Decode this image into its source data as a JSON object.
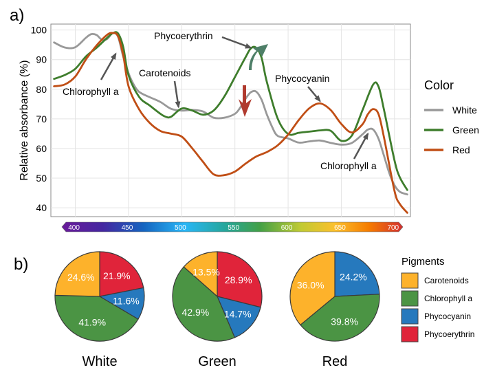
{
  "panel_a_label": "a)",
  "panel_b_label": "b)",
  "spectrum_ticks": [
    "400",
    "450",
    "500",
    "550",
    "600",
    "650",
    "700"
  ],
  "chart_data": [
    {
      "type": "line",
      "ylabel": "Relative absorbance (%)",
      "xlim": [
        377,
        715
      ],
      "ylim": [
        37,
        102
      ],
      "y_ticks": [
        40,
        50,
        60,
        70,
        80,
        90,
        100
      ],
      "grid": true,
      "legend": {
        "title": "Color",
        "placement": "right"
      },
      "series": [
        {
          "name": "White",
          "color": "#999999",
          "points": [
            [
              380,
              95.8
            ],
            [
              390,
              94.1
            ],
            [
              400,
              94.2
            ],
            [
              410,
              97.4
            ],
            [
              415,
              98.6
            ],
            [
              420,
              98.3
            ],
            [
              425,
              96.7
            ],
            [
              430,
              97.0
            ],
            [
              435,
              98.9
            ],
            [
              440,
              97.8
            ],
            [
              445,
              91.0
            ],
            [
              450,
              85.4
            ],
            [
              455,
              81.5
            ],
            [
              460,
              79.1
            ],
            [
              470,
              77.3
            ],
            [
              480,
              75.7
            ],
            [
              490,
              73.4
            ],
            [
              500,
              72.8
            ],
            [
              510,
              73.0
            ],
            [
              520,
              72.5
            ],
            [
              530,
              70.4
            ],
            [
              540,
              70.4
            ],
            [
              550,
              71.7
            ],
            [
              555,
              73.8
            ],
            [
              560,
              76.8
            ],
            [
              565,
              79.0
            ],
            [
              570,
              79.2
            ],
            [
              575,
              76.5
            ],
            [
              580,
              71.5
            ],
            [
              585,
              67.3
            ],
            [
              590,
              64.3
            ],
            [
              600,
              63.4
            ],
            [
              610,
              62.0
            ],
            [
              620,
              62.4
            ],
            [
              630,
              62.7
            ],
            [
              640,
              61.9
            ],
            [
              650,
              61.3
            ],
            [
              660,
              61.9
            ],
            [
              670,
              64.8
            ],
            [
              675,
              66.4
            ],
            [
              680,
              66.4
            ],
            [
              685,
              63.3
            ],
            [
              690,
              57.7
            ],
            [
              695,
              51.8
            ],
            [
              700,
              47.6
            ],
            [
              705,
              45.4
            ],
            [
              712,
              44.5
            ]
          ]
        },
        {
          "name": "Green",
          "color": "#3e7d2c",
          "points": [
            [
              380,
              83.5
            ],
            [
              390,
              84.8
            ],
            [
              400,
              86.9
            ],
            [
              410,
              91.1
            ],
            [
              420,
              94.0
            ],
            [
              430,
              97.4
            ],
            [
              435,
              98.9
            ],
            [
              440,
              98.9
            ],
            [
              445,
              94.3
            ],
            [
              450,
              84.7
            ],
            [
              460,
              77.4
            ],
            [
              470,
              74.5
            ],
            [
              480,
              71.7
            ],
            [
              485,
              70.7
            ],
            [
              490,
              70.7
            ],
            [
              500,
              73.5
            ],
            [
              510,
              72.8
            ],
            [
              520,
              71.4
            ],
            [
              530,
              72.8
            ],
            [
              540,
              77.5
            ],
            [
              550,
              84.1
            ],
            [
              560,
              90.8
            ],
            [
              565,
              93.8
            ],
            [
              570,
              94.0
            ],
            [
              575,
              90.7
            ],
            [
              580,
              82.5
            ],
            [
              590,
              70.3
            ],
            [
              600,
              64.9
            ],
            [
              610,
              65.3
            ],
            [
              620,
              65.7
            ],
            [
              630,
              66.1
            ],
            [
              640,
              66.0
            ],
            [
              650,
              62.6
            ],
            [
              660,
              64.4
            ],
            [
              670,
              73.0
            ],
            [
              680,
              81.6
            ],
            [
              685,
              80.9
            ],
            [
              690,
              73.3
            ],
            [
              700,
              56.0
            ],
            [
              705,
              50.3
            ],
            [
              712,
              46.0
            ]
          ]
        },
        {
          "name": "Red",
          "color": "#c04e15",
          "points": [
            [
              380,
              81.0
            ],
            [
              390,
              81.6
            ],
            [
              400,
              84.3
            ],
            [
              410,
              90.1
            ],
            [
              420,
              94.8
            ],
            [
              430,
              98.4
            ],
            [
              435,
              99.0
            ],
            [
              440,
              98.0
            ],
            [
              445,
              91.6
            ],
            [
              450,
              81.0
            ],
            [
              460,
              73.2
            ],
            [
              470,
              68.6
            ],
            [
              480,
              65.9
            ],
            [
              490,
              65.0
            ],
            [
              500,
              64.0
            ],
            [
              510,
              60.0
            ],
            [
              520,
              55.5
            ],
            [
              530,
              51.3
            ],
            [
              540,
              51.0
            ],
            [
              550,
              52.2
            ],
            [
              560,
              54.9
            ],
            [
              570,
              57.3
            ],
            [
              580,
              58.8
            ],
            [
              590,
              61.0
            ],
            [
              600,
              64.7
            ],
            [
              610,
              69.6
            ],
            [
              620,
              73.6
            ],
            [
              630,
              75.2
            ],
            [
              640,
              73.0
            ],
            [
              650,
              68.3
            ],
            [
              660,
              65.4
            ],
            [
              670,
              68.2
            ],
            [
              675,
              71.6
            ],
            [
              680,
              73.3
            ],
            [
              685,
              71.6
            ],
            [
              690,
              64.0
            ],
            [
              700,
              45.7
            ],
            [
              705,
              41.3
            ],
            [
              712,
              38.3
            ]
          ]
        }
      ],
      "annotations": [
        {
          "text": "Phycoerythrin",
          "x": 565,
          "y": 94
        },
        {
          "text": "Carotenoids",
          "x": 497,
          "y": 74
        },
        {
          "text": "Chlorophyll a",
          "x": 438,
          "y": 92
        },
        {
          "text": "Phycocyanin",
          "x": 630,
          "y": 76
        },
        {
          "text": "Chlorophyll a",
          "x": 675,
          "y": 65
        }
      ]
    },
    {
      "type": "pie",
      "title": "White",
      "labels": [
        "Carotenoids",
        "Chlorophyll a",
        "Phycocyanin",
        "Phycoerythrin"
      ],
      "values": [
        24.6,
        41.9,
        11.6,
        21.9
      ],
      "value_labels": [
        "24.6%",
        "41.9%",
        "11.6%",
        "21.9%"
      ]
    },
    {
      "type": "pie",
      "title": "Green",
      "labels": [
        "Carotenoids",
        "Chlorophyll a",
        "Phycocyanin",
        "Phycoerythrin"
      ],
      "values": [
        13.5,
        42.9,
        14.7,
        28.9
      ],
      "value_labels": [
        "13.5%",
        "42.9%",
        "14.7%",
        "28.9%"
      ]
    },
    {
      "type": "pie",
      "title": "Red",
      "labels": [
        "Carotenoids",
        "Chlorophyll a",
        "Phycocyanin"
      ],
      "values": [
        36.0,
        39.8,
        24.2
      ],
      "value_labels": [
        "36.0%",
        "39.8%",
        "24.2%"
      ]
    }
  ],
  "pie_legend": {
    "title": "Pigments",
    "items": [
      {
        "label": "Carotenoids",
        "color": "#fdb22b"
      },
      {
        "label": "Chlorophyll a",
        "color": "#4b9444"
      },
      {
        "label": "Phycocyanin",
        "color": "#2679bd"
      },
      {
        "label": "Phycoerythrin",
        "color": "#e0243a"
      }
    ]
  }
}
